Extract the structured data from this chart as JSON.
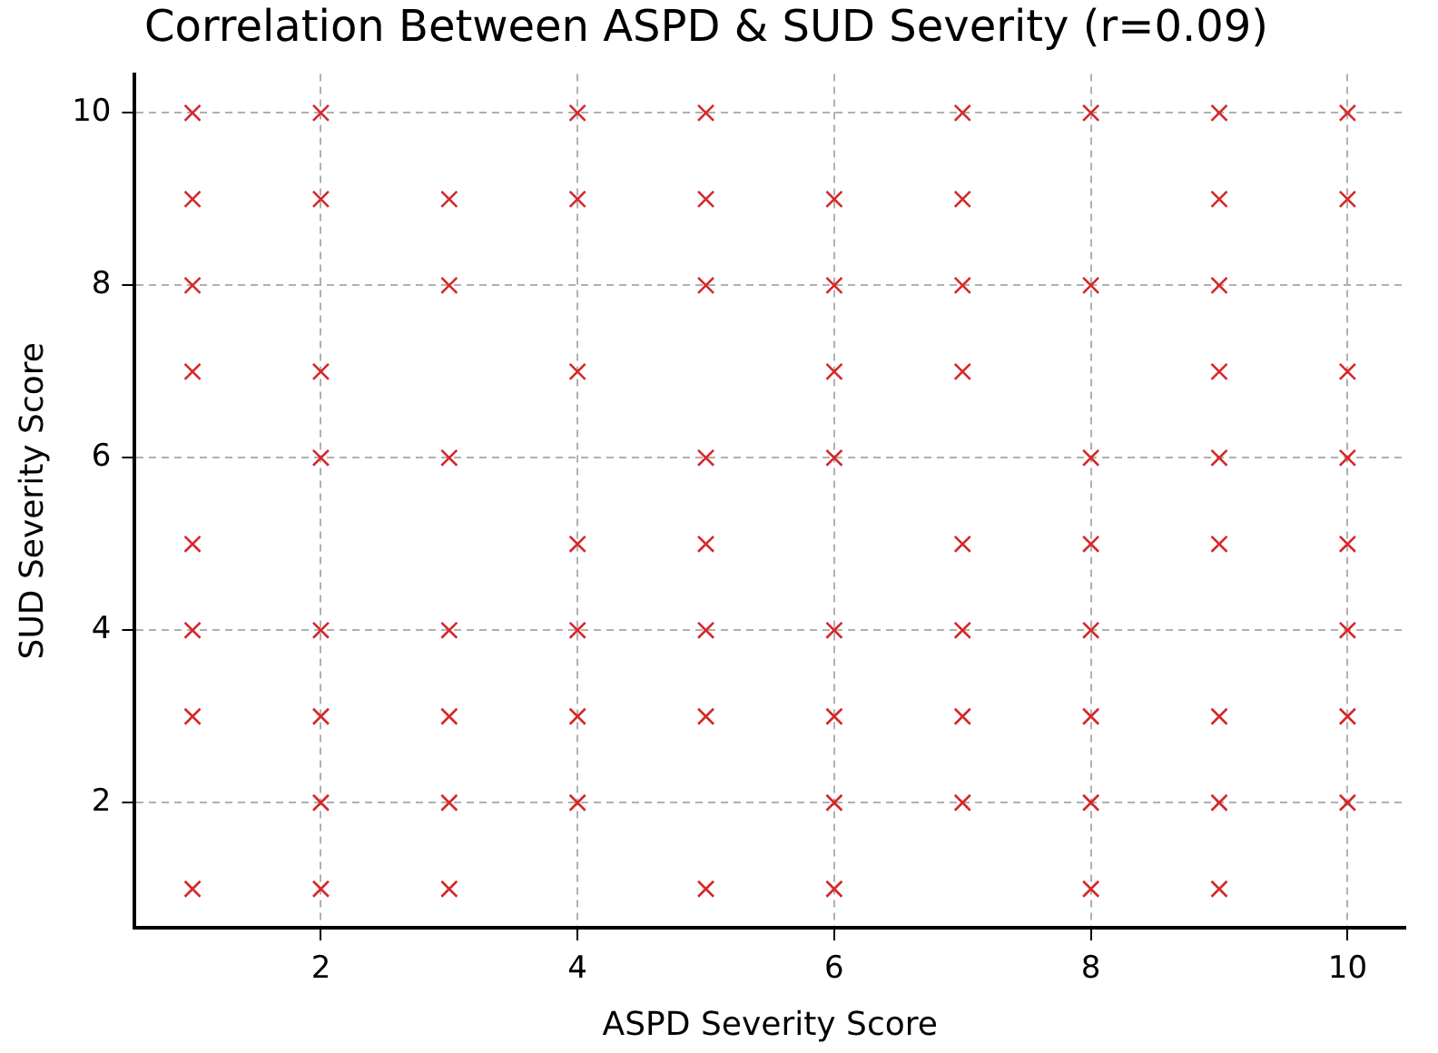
{
  "chart_data": {
    "type": "scatter",
    "title": "Correlation Between ASPD & SUD Severity (r=0.09)",
    "xlabel": "ASPD Severity Score",
    "ylabel": "SUD Severity Score",
    "series": [
      {
        "color": "#d62728",
        "x": [
          1,
          2,
          4,
          5,
          7,
          8,
          9,
          10,
          1,
          2,
          3,
          4,
          5,
          6,
          7,
          9,
          10,
          1,
          3,
          5,
          6,
          7,
          8,
          9,
          1,
          2,
          4,
          6,
          7,
          9,
          10,
          2,
          3,
          5,
          6,
          8,
          9,
          10,
          1,
          4,
          5,
          7,
          8,
          9,
          10,
          1,
          2,
          3,
          4,
          5,
          6,
          7,
          8,
          10,
          1,
          2,
          3,
          4,
          5,
          6,
          7,
          8,
          9,
          10,
          2,
          3,
          4,
          6,
          7,
          8,
          9,
          10,
          1,
          2,
          3,
          5,
          6,
          8,
          9
        ],
        "values": [
          10,
          10,
          10,
          10,
          10,
          10,
          10,
          10,
          9,
          9,
          9,
          9,
          9,
          9,
          9,
          9,
          9,
          8,
          8,
          8,
          8,
          8,
          8,
          8,
          7,
          7,
          7,
          7,
          7,
          7,
          7,
          6,
          6,
          6,
          6,
          6,
          6,
          6,
          5,
          5,
          5,
          5,
          5,
          5,
          5,
          4,
          4,
          4,
          4,
          4,
          4,
          4,
          4,
          4,
          3,
          3,
          3,
          3,
          3,
          3,
          3,
          3,
          3,
          3,
          2,
          2,
          2,
          2,
          2,
          2,
          2,
          2,
          1,
          1,
          1,
          1,
          1,
          1,
          1
        ]
      }
    ],
    "xlim": [
      0.55,
      10.45
    ],
    "ylim": [
      0.55,
      10.45
    ],
    "xticks": [
      2,
      4,
      6,
      8,
      10
    ],
    "yticks": [
      2,
      4,
      6,
      8,
      10
    ],
    "grid": true,
    "marker": "cross",
    "legend": false
  }
}
